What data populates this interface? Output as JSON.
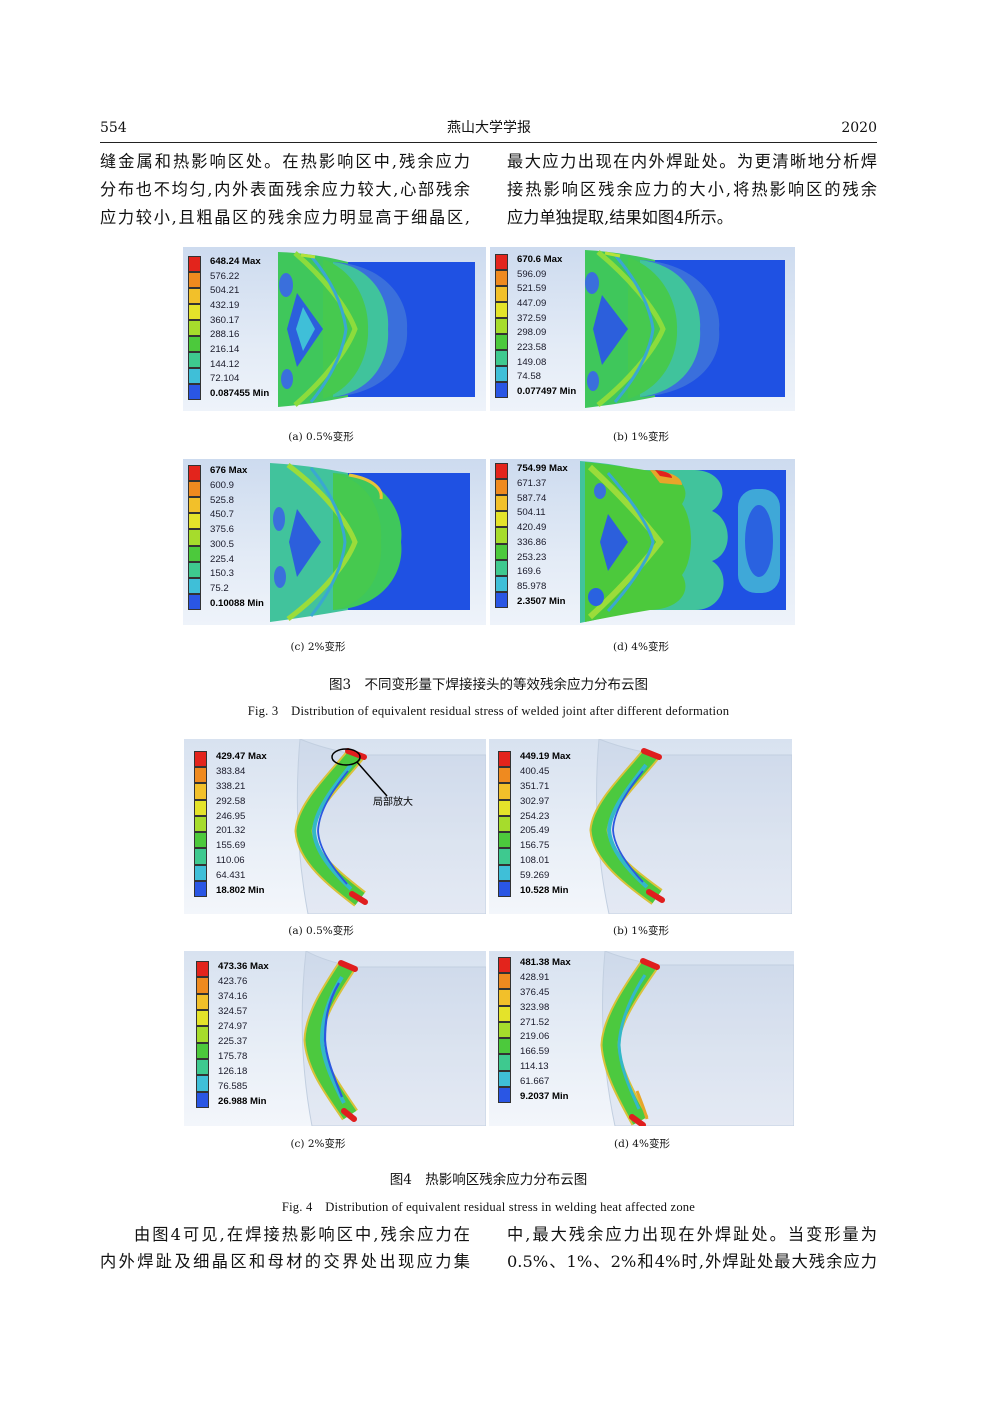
{
  "header": {
    "page_number": "554",
    "journal": "燕山大学学报",
    "year": "2020"
  },
  "top_text": {
    "left": [
      "缝金属和热影响区处。在热影响区中,残余应力",
      "分布也不均匀,内外表面残余应力较大,心部残余",
      "应力较小,且粗晶区的残余应力明显高于细晶区,"
    ],
    "right": [
      "最大应力出现在内外焊趾处。为更清晰地分析焊",
      "接热影响区残余应力的大小,将热影响区的残余",
      "应力单独提取,结果如图4所示。"
    ]
  },
  "legend_colors": [
    "#e3241c",
    "#ef8a1f",
    "#f2c02a",
    "#e4e32a",
    "#a6dc2c",
    "#4cc93c",
    "#3ec98f",
    "#3fbfd8",
    "#2a56e4"
  ],
  "figure3": {
    "panels": [
      {
        "caption": "(a) 0.5%变形",
        "legend": [
          "648.24 Max",
          "576.22",
          "504.21",
          "432.19",
          "360.17",
          "288.16",
          "216.14",
          "144.12",
          "72.104",
          "0.087455 Min"
        ]
      },
      {
        "caption": "(b) 1%变形",
        "legend": [
          "670.6 Max",
          "596.09",
          "521.59",
          "447.09",
          "372.59",
          "298.09",
          "223.58",
          "149.08",
          "74.58",
          "0.077497 Min"
        ]
      },
      {
        "caption": "(c) 2%变形",
        "legend": [
          "676 Max",
          "600.9",
          "525.8",
          "450.7",
          "375.6",
          "300.5",
          "225.4",
          "150.3",
          "75.2",
          "0.10088 Min"
        ]
      },
      {
        "caption": "(d) 4%变形",
        "legend": [
          "754.99 Max",
          "671.37",
          "587.74",
          "504.11",
          "420.49",
          "336.86",
          "253.23",
          "169.6",
          "85.978",
          "2.3507 Min"
        ]
      }
    ],
    "caption_cn": "图3　不同变形量下焊接接头的等效残余应力分布云图",
    "caption_en": "Fig. 3　Distribution of equivalent residual stress of welded joint after different deformation"
  },
  "figure4": {
    "panels": [
      {
        "caption": "(a) 0.5%变形",
        "legend": [
          "429.47 Max",
          "383.84",
          "338.21",
          "292.58",
          "246.95",
          "201.32",
          "155.69",
          "110.06",
          "64.431",
          "18.802 Min"
        ]
      },
      {
        "caption": "(b) 1%变形",
        "legend": [
          "449.19 Max",
          "400.45",
          "351.71",
          "302.97",
          "254.23",
          "205.49",
          "156.75",
          "108.01",
          "59.269",
          "10.528 Min"
        ]
      },
      {
        "caption": "(c) 2%变形",
        "legend": [
          "473.36 Max",
          "423.76",
          "374.16",
          "324.57",
          "274.97",
          "225.37",
          "175.78",
          "126.18",
          "76.585",
          "26.988 Min"
        ]
      },
      {
        "caption": "(d) 4%变形",
        "legend": [
          "481.38 Max",
          "428.91",
          "376.45",
          "323.98",
          "271.52",
          "219.06",
          "166.59",
          "114.13",
          "61.667",
          "9.2037 Min"
        ]
      }
    ],
    "annotation": "局部放大",
    "caption_cn": "图4　热影响区残余应力分布云图",
    "caption_en": "Fig. 4　Distribution of equivalent residual stress in welding heat affected zone"
  },
  "bottom_text": {
    "left": [
      "由图4可见,在焊接热影响区中,残余应力在",
      "内外焊趾及细晶区和母材的交界处出现应力集"
    ],
    "right": [
      "中,最大残余应力出现在外焊趾处。当变形量为",
      "0.5%、1%、2%和4%时,外焊趾处最大残余应力"
    ]
  }
}
